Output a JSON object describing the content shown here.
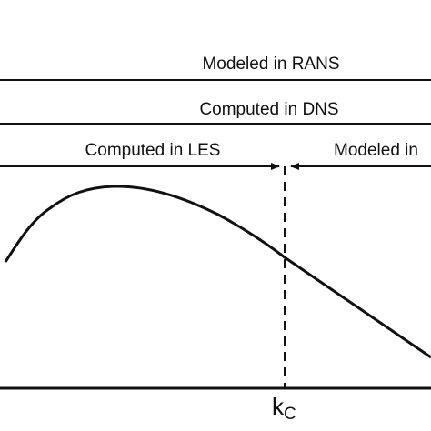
{
  "labels": {
    "rans": "Modeled in RANS",
    "dns": "Computed in DNS",
    "les": "Computed in LES",
    "modeled": "Modeled in"
  },
  "axis": {
    "cutoff_main": "k",
    "cutoff_sub": "C"
  },
  "colors": {
    "ink": "#111111",
    "background": "#ffffff"
  }
}
